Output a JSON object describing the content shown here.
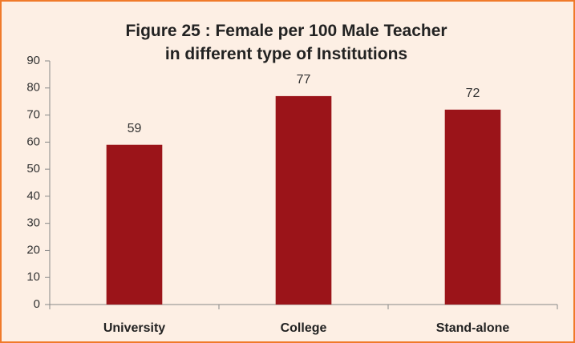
{
  "chart_data": {
    "type": "bar",
    "title": "Figure 25 : Female per 100 Male Teacher in different type of Institutions",
    "categories": [
      "University",
      "College",
      "Stand-alone"
    ],
    "values": [
      59,
      77,
      72
    ],
    "color": "#9b1419",
    "ylim": [
      0,
      90
    ],
    "yticks": [
      0,
      10,
      20,
      30,
      40,
      50,
      60,
      70,
      80,
      90
    ],
    "grid": false
  }
}
